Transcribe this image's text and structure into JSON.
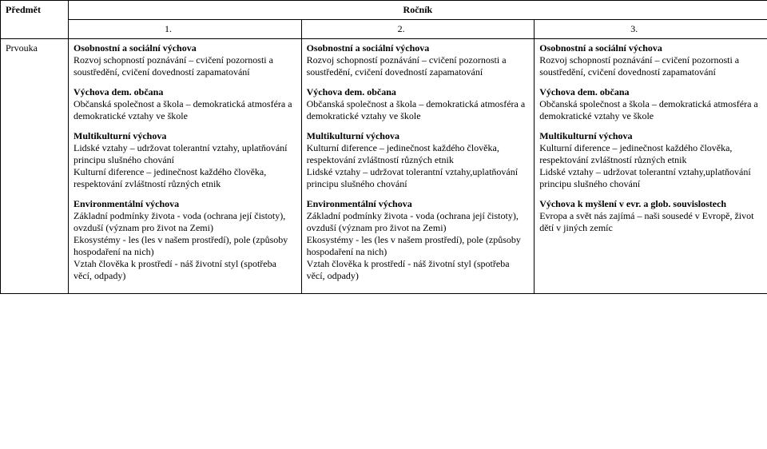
{
  "headers": {
    "subject": "Předmět",
    "grade": "Ročník",
    "col1": "1.",
    "col2": "2.",
    "col3": "3."
  },
  "subject": "Prvouka",
  "columns": [
    {
      "osv_title": "Osobnostní a sociální výchova",
      "osv_text": "Rozvoj schopností poznávání – cvičení pozornosti a soustředění, cvičení dovedností zapamatování",
      "vdo_title": "Výchova dem. občana",
      "vdo_text": "Občanská společnost a škola – demokratická atmosféra a demokratické vztahy ve škole",
      "mkv_title": "Multikulturní výchova",
      "mkv_text": "Lidské vztahy – udržovat tolerantní vztahy, uplatňování principu slušného chování\nKulturní diference – jedinečnost každého člověka, respektování zvláštností různých etnik",
      "env_title": "Environmentální výchova",
      "env_text": "Základní podmínky života - voda (ochrana její čistoty), ovzduší (význam pro život na Zemi)\nEkosystémy - les (les v našem prostředí), pole (způsoby hospodaření na nich)\nVztah člověka k prostředí - náš životní styl (spotřeba věcí, odpady)"
    },
    {
      "osv_title": "Osobnostní a sociální výchova",
      "osv_text": "Rozvoj schopností poznávání – cvičení pozornosti a soustředění, cvičení dovedností zapamatování",
      "vdo_title": "Výchova dem. občana",
      "vdo_text": "Občanská společnost a škola – demokratická atmosféra a demokratické vztahy ve škole",
      "mkv_title": "Multikulturní výchova",
      "mkv_text": "Kulturní diference – jedinečnost každého člověka, respektování zvláštností různých etnik\nLidské vztahy – udržovat tolerantní vztahy,uplatňování principu slušného chování",
      "env_title": "Environmentální výchova",
      "env_text": "Základní podmínky života - voda (ochrana její čistoty), ovzduší (význam pro život na Zemi)\nEkosystémy - les (les v našem prostředí), pole (způsoby hospodaření na nich)\nVztah člověka k prostředí - náš životní styl (spotřeba věcí, odpady)"
    },
    {
      "osv_title": "Osobnostní a sociální výchova",
      "osv_text": "Rozvoj schopností poznávání – cvičení pozornosti a soustředění, cvičení dovedností zapamatování",
      "vdo_title": "Výchova dem. občana",
      "vdo_text": "Občanská společnost a škola – demokratická atmosféra a demokratické vztahy ve škole",
      "mkv_title": "Multikulturní výchova",
      "mkv_text": "Kulturní diference – jedinečnost každého člověka, respektování zvláštností různých etnik\nLidské vztahy – udržovat tolerantní vztahy,uplatňování principu slušného chování",
      "glob_title": "Výchova k myšlení v evr. a glob. souvislostech",
      "glob_text": "Evropa a svět nás zajímá – naši sousedé v Evropě, život dětí v jiných zemíc"
    }
  ]
}
